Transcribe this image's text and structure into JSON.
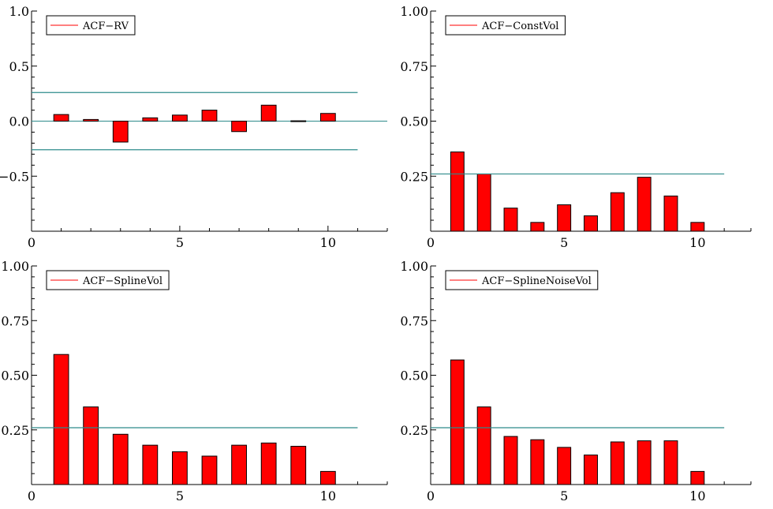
{
  "chart_data": [
    {
      "type": "bar",
      "legend": "ACF−RV",
      "x": [
        1,
        2,
        3,
        4,
        5,
        6,
        7,
        8,
        9,
        10
      ],
      "values": [
        0.06,
        0.015,
        -0.19,
        0.03,
        0.055,
        0.1,
        -0.095,
        0.145,
        0.003,
        0.07
      ],
      "bands": [
        0.26,
        -0.26
      ],
      "zero_line": true,
      "xlim": [
        0,
        12
      ],
      "ylim": [
        -1.0,
        1.0
      ],
      "xticks": [
        0,
        5,
        10
      ],
      "xtick_labels": [
        "0",
        "5",
        "10"
      ],
      "yticks": [
        1.0,
        0.5,
        0.0,
        -0.5
      ],
      "ytick_labels": [
        "1.0",
        "0.5",
        "0.0",
        "−0.5"
      ],
      "legend_position": "top-left",
      "bar_color": "#ff0000",
      "band_color": "#2e8b8b"
    },
    {
      "type": "bar",
      "legend": "ACF−ConstVol",
      "x": [
        1,
        2,
        3,
        4,
        5,
        6,
        7,
        8,
        9,
        10
      ],
      "values": [
        0.36,
        0.26,
        0.105,
        0.04,
        0.12,
        0.07,
        0.175,
        0.245,
        0.16,
        0.04
      ],
      "bands": [
        0.26
      ],
      "zero_line": false,
      "xlim": [
        0,
        12
      ],
      "ylim": [
        0,
        1.0
      ],
      "xticks": [
        0,
        5,
        10
      ],
      "xtick_labels": [
        "0",
        "5",
        "10"
      ],
      "yticks": [
        1.0,
        0.75,
        0.5,
        0.25
      ],
      "ytick_labels": [
        "1.00",
        "0.75",
        "0.50",
        "0.25"
      ],
      "legend_position": "top-left",
      "bar_color": "#ff0000",
      "band_color": "#2e8b8b"
    },
    {
      "type": "bar",
      "legend": "ACF−SplineVol",
      "x": [
        1,
        2,
        3,
        4,
        5,
        6,
        7,
        8,
        9,
        10
      ],
      "values": [
        0.595,
        0.355,
        0.23,
        0.18,
        0.15,
        0.13,
        0.18,
        0.19,
        0.175,
        0.06
      ],
      "bands": [
        0.26
      ],
      "zero_line": false,
      "xlim": [
        0,
        12
      ],
      "ylim": [
        0,
        1.0
      ],
      "xticks": [
        0,
        5,
        10
      ],
      "xtick_labels": [
        "0",
        "5",
        "10"
      ],
      "yticks": [
        1.0,
        0.75,
        0.5,
        0.25
      ],
      "ytick_labels": [
        "1.00",
        "0.75",
        "0.50",
        "0.25"
      ],
      "legend_position": "top-left",
      "bar_color": "#ff0000",
      "band_color": "#2e8b8b"
    },
    {
      "type": "bar",
      "legend": "ACF−SplineNoiseVol",
      "x": [
        1,
        2,
        3,
        4,
        5,
        6,
        7,
        8,
        9,
        10
      ],
      "values": [
        0.57,
        0.355,
        0.22,
        0.205,
        0.17,
        0.135,
        0.195,
        0.2,
        0.2,
        0.06
      ],
      "bands": [
        0.26
      ],
      "zero_line": false,
      "xlim": [
        0,
        12
      ],
      "ylim": [
        0,
        1.0
      ],
      "xticks": [
        0,
        5,
        10
      ],
      "xtick_labels": [
        "0",
        "5",
        "10"
      ],
      "yticks": [
        1.0,
        0.75,
        0.5,
        0.25
      ],
      "ytick_labels": [
        "1.00",
        "0.75",
        "0.50",
        "0.25"
      ],
      "legend_position": "top-left",
      "bar_color": "#ff0000",
      "band_color": "#2e8b8b"
    }
  ]
}
